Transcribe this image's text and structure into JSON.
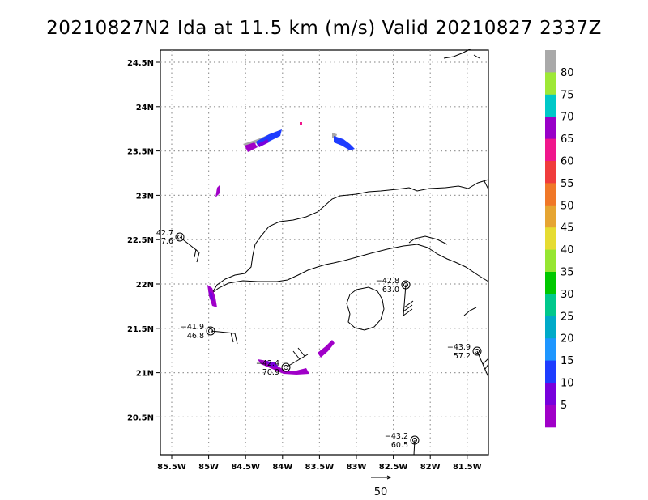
{
  "title": "20210827N2 Ida at 11.5 km (m/s) Valid 20210827  2337Z",
  "lon_ticks": [
    "85.5W",
    "85W",
    "84.5W",
    "84W",
    "83.5W",
    "83W",
    "82.5W",
    "82W",
    "81.5W"
  ],
  "lat_ticks": [
    "24.5N",
    "24N",
    "23.5N",
    "23N",
    "22.5N",
    "22N",
    "21.5N",
    "21N",
    "20.5N"
  ],
  "colorbar": {
    "labels": [
      "80",
      "75",
      "70",
      "65",
      "60",
      "55",
      "50",
      "45",
      "40",
      "35",
      "30",
      "25",
      "20",
      "15",
      "10",
      "5"
    ],
    "colors": [
      "#a9a9a9",
      "#9ee836",
      "#00c8c8",
      "#9900c8",
      "#f0168c",
      "#f03c3c",
      "#f07828",
      "#e6a532",
      "#e6dc32",
      "#96e632",
      "#00c800",
      "#00c88c",
      "#00aac8",
      "#1e96ff",
      "#1e3cff",
      "#7800dc",
      "#a000c8"
    ]
  },
  "stations": [
    {
      "name": "station-west",
      "line1": "42.7",
      "line2": "7.6"
    },
    {
      "name": "station-central-east",
      "line1": "−42.8",
      "line2": "63.0"
    },
    {
      "name": "station-west-south",
      "line1": "−41.9",
      "line2": "46.8"
    },
    {
      "name": "station-central",
      "line1": "−42.4",
      "line2": "70.9"
    },
    {
      "name": "station-east",
      "line1": "−43.9",
      "line2": "57.2"
    },
    {
      "name": "station-south",
      "line1": "−43.2",
      "line2": "60.5"
    }
  ],
  "vector_scale_label": "50"
}
